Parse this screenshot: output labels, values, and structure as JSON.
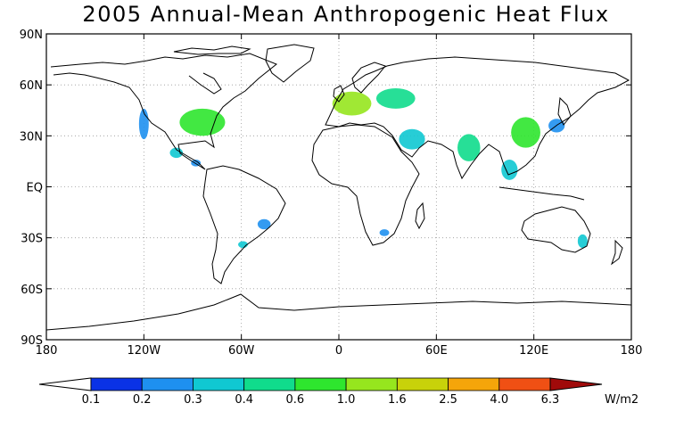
{
  "title": "2005 Annual-Mean Anthropogenic Heat Flux",
  "y_axis": {
    "ticks": [
      {
        "label": "90N",
        "lat": 90
      },
      {
        "label": "60N",
        "lat": 60
      },
      {
        "label": "30N",
        "lat": 30
      },
      {
        "label": "EQ",
        "lat": 0
      },
      {
        "label": "30S",
        "lat": -30
      },
      {
        "label": "60S",
        "lat": -60
      },
      {
        "label": "90S",
        "lat": -90
      }
    ]
  },
  "x_axis": {
    "ticks": [
      {
        "label": "180",
        "lon": -180
      },
      {
        "label": "120W",
        "lon": -120
      },
      {
        "label": "60W",
        "lon": -60
      },
      {
        "label": "0",
        "lon": 0
      },
      {
        "label": "60E",
        "lon": 60
      },
      {
        "label": "120E",
        "lon": 120
      },
      {
        "label": "180",
        "lon": 180
      }
    ]
  },
  "colorbar": {
    "unit": "W/m2",
    "bounds": [
      "0.1",
      "0.2",
      "0.3",
      "0.4",
      "0.6",
      "1.0",
      "1.6",
      "2.5",
      "4.0",
      "6.3"
    ],
    "under_color": "#ffffff",
    "colors": [
      "#0a32e6",
      "#1e90f0",
      "#10c8d2",
      "#10dc8c",
      "#2ee62e",
      "#96e61e",
      "#c8d20a",
      "#f5a50a",
      "#f05014"
    ],
    "over_color": "#a00a0a"
  },
  "regions": [
    {
      "name": "eastern-us",
      "lon": -84,
      "lat": 38,
      "rlon": 14,
      "rlat": 8,
      "color": "#2ee62e"
    },
    {
      "name": "us-west-coast",
      "lon": -120,
      "lat": 37,
      "rlon": 3,
      "rlat": 9,
      "color": "#1e90f0"
    },
    {
      "name": "mexico",
      "lon": -100,
      "lat": 20,
      "rlon": 4,
      "rlat": 3,
      "color": "#10c8d2"
    },
    {
      "name": "central-america",
      "lon": -88,
      "lat": 14,
      "rlon": 3,
      "rlat": 2,
      "color": "#1e90f0"
    },
    {
      "name": "southeast-brazil",
      "lon": -46,
      "lat": -22,
      "rlon": 4,
      "rlat": 3,
      "color": "#1e90f0"
    },
    {
      "name": "buenos-aires",
      "lon": -59,
      "lat": -34,
      "rlon": 3,
      "rlat": 2,
      "color": "#10c8d2"
    },
    {
      "name": "western-europe",
      "lon": 8,
      "lat": 49,
      "rlon": 12,
      "rlat": 7,
      "color": "#96e61e"
    },
    {
      "name": "eastern-europe",
      "lon": 35,
      "lat": 52,
      "rlon": 12,
      "rlat": 6,
      "color": "#10dc8c"
    },
    {
      "name": "middle-east",
      "lon": 45,
      "lat": 28,
      "rlon": 8,
      "rlat": 6,
      "color": "#10c8d2"
    },
    {
      "name": "india",
      "lon": 80,
      "lat": 23,
      "rlon": 7,
      "rlat": 8,
      "color": "#10dc8c"
    },
    {
      "name": "eastern-china",
      "lon": 115,
      "lat": 32,
      "rlon": 9,
      "rlat": 9,
      "color": "#2ee62e"
    },
    {
      "name": "korea-japan",
      "lon": 134,
      "lat": 36,
      "rlon": 5,
      "rlat": 4,
      "color": "#1e90f0"
    },
    {
      "name": "southeast-asia",
      "lon": 105,
      "lat": 10,
      "rlon": 5,
      "rlat": 6,
      "color": "#10c8d2"
    },
    {
      "name": "south-africa",
      "lon": 28,
      "lat": -27,
      "rlon": 3,
      "rlat": 2,
      "color": "#1e90f0"
    },
    {
      "name": "eastern-australia",
      "lon": 150,
      "lat": -32,
      "rlon": 3,
      "rlat": 4,
      "color": "#10c8d2"
    }
  ]
}
